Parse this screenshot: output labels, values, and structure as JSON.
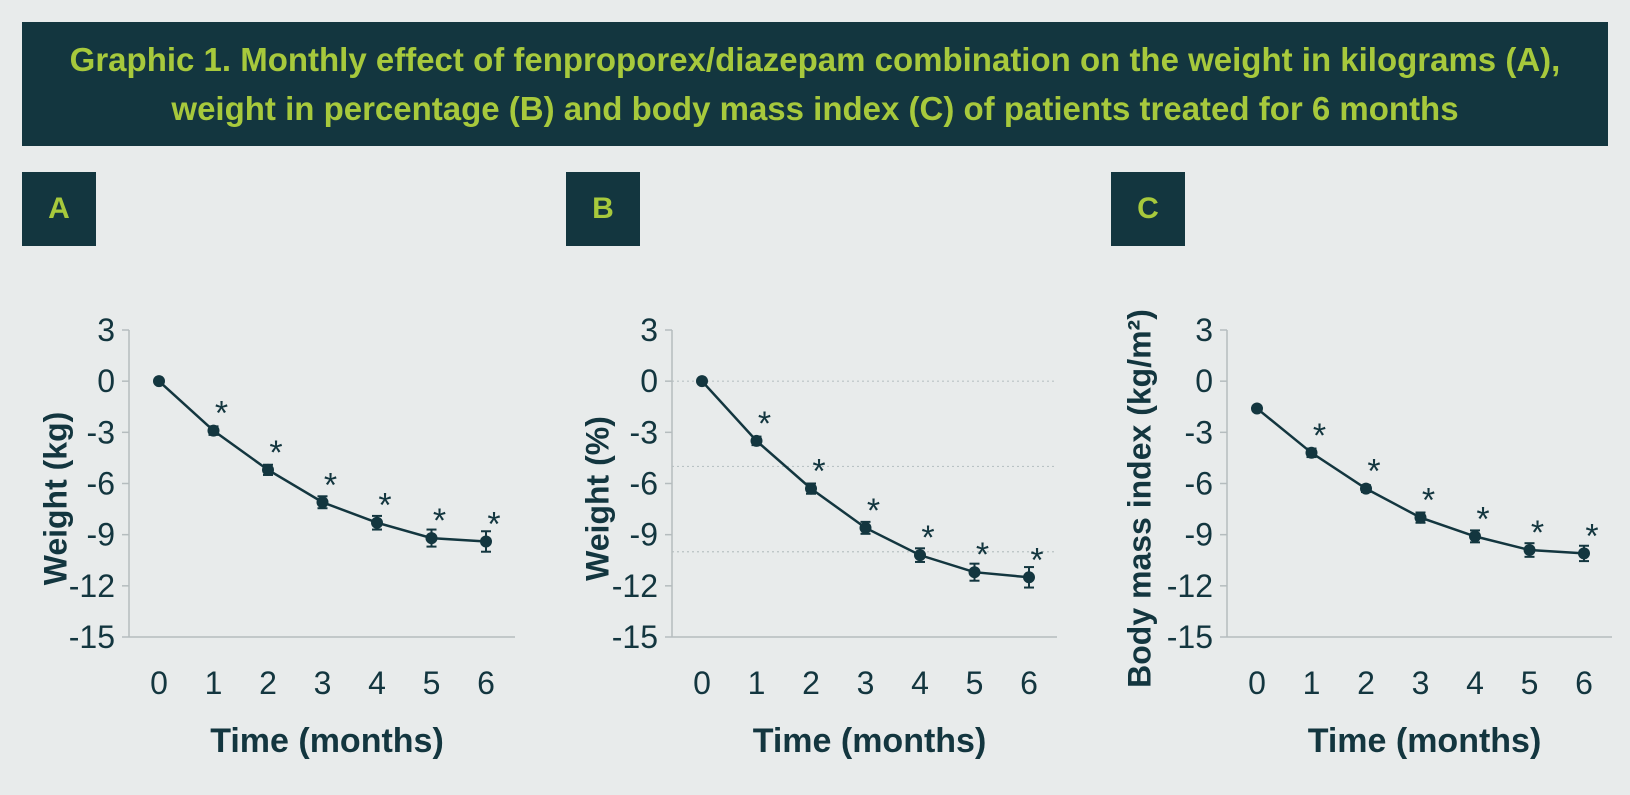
{
  "title": "Graphic 1. Monthly effect of fenproporex/diazepam combination on the weight in kilograms (A), weight in percentage (B) and body mass index (C) of patients treated for 6 months",
  "colors": {
    "dark": "#13363f",
    "accent": "#a7c93c",
    "background": "#e8ebeb"
  },
  "panels": [
    {
      "label": "A"
    },
    {
      "label": "B"
    },
    {
      "label": "C"
    }
  ],
  "chart_data": [
    {
      "type": "line",
      "panel": "A",
      "xlabel": "Time (months)",
      "ylabel": "Weight (kg)",
      "x": [
        0,
        1,
        2,
        3,
        4,
        5,
        6
      ],
      "x_ticks": [
        "0",
        "1",
        "2",
        "3",
        "4",
        "5",
        "6"
      ],
      "y": [
        0,
        -2.9,
        -5.2,
        -7.1,
        -8.3,
        -9.2,
        -9.4
      ],
      "error": [
        0,
        0.25,
        0.3,
        0.35,
        0.4,
        0.5,
        0.6
      ],
      "significant": [
        false,
        true,
        true,
        true,
        true,
        true,
        true
      ],
      "ylim": [
        -15,
        3
      ],
      "y_ticks": [
        "3",
        "0",
        "-3",
        "-6",
        "-9",
        "-12",
        "-15"
      ],
      "y_tick_values": [
        3,
        0,
        -3,
        -6,
        -9,
        -12,
        -15
      ],
      "marker_label": "*",
      "gridlines": []
    },
    {
      "type": "line",
      "panel": "B",
      "xlabel": "Time (months)",
      "ylabel": "Weight (%)",
      "x": [
        0,
        1,
        2,
        3,
        4,
        5,
        6
      ],
      "x_ticks": [
        "0",
        "1",
        "2",
        "3",
        "4",
        "5",
        "6"
      ],
      "y": [
        0,
        -3.5,
        -6.3,
        -8.6,
        -10.2,
        -11.2,
        -11.5
      ],
      "error": [
        0,
        0.25,
        0.3,
        0.35,
        0.4,
        0.5,
        0.6
      ],
      "significant": [
        false,
        true,
        true,
        true,
        true,
        true,
        true
      ],
      "ylim": [
        -15,
        3
      ],
      "y_ticks": [
        "3",
        "0",
        "-3",
        "-6",
        "-9",
        "-12",
        "-15"
      ],
      "y_tick_values": [
        3,
        0,
        -3,
        -6,
        -9,
        -12,
        -15
      ],
      "marker_label": "*",
      "gridlines": [
        0,
        -5,
        -10
      ]
    },
    {
      "type": "line",
      "panel": "C",
      "xlabel": "Time (months)",
      "ylabel": "Body mass index (kg/m²)",
      "x": [
        0,
        1,
        2,
        3,
        4,
        5,
        6
      ],
      "x_ticks": [
        "0",
        "1",
        "2",
        "3",
        "4",
        "5",
        "6"
      ],
      "y": [
        -1.6,
        -4.2,
        -6.3,
        -8.0,
        -9.1,
        -9.9,
        -10.1
      ],
      "error": [
        0,
        0.25,
        0.2,
        0.3,
        0.35,
        0.4,
        0.45
      ],
      "significant": [
        false,
        true,
        true,
        true,
        true,
        true,
        true
      ],
      "ylim": [
        -15,
        3
      ],
      "y_ticks": [
        "3",
        "0",
        "-3",
        "-6",
        "-9",
        "-12",
        "-15"
      ],
      "y_tick_values": [
        3,
        0,
        -3,
        -6,
        -9,
        -12,
        -15
      ],
      "marker_label": "*",
      "gridlines": []
    }
  ]
}
